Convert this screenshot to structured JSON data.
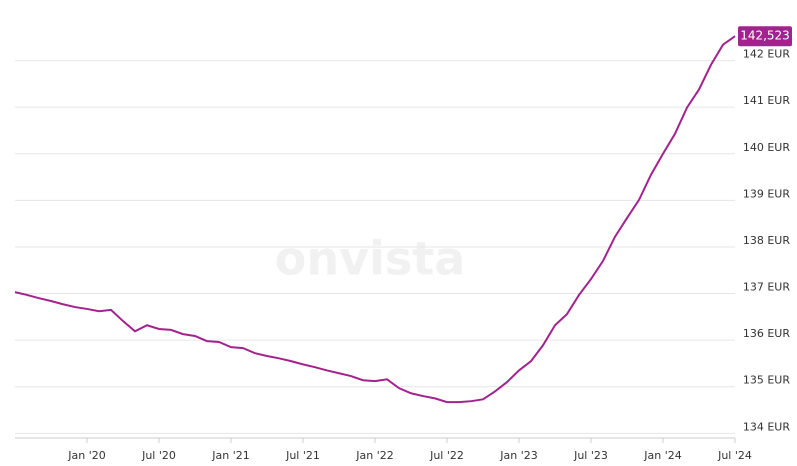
{
  "chart_data": {
    "type": "line",
    "watermark": "onvista",
    "x": [
      "2019-07",
      "2019-08",
      "2019-09",
      "2019-10",
      "2019-11",
      "2019-12",
      "2020-01",
      "2020-02",
      "2020-03",
      "2020-04",
      "2020-05",
      "2020-06",
      "2020-07",
      "2020-08",
      "2020-09",
      "2020-10",
      "2020-11",
      "2020-12",
      "2021-01",
      "2021-02",
      "2021-03",
      "2021-04",
      "2021-05",
      "2021-06",
      "2021-07",
      "2021-08",
      "2021-09",
      "2021-10",
      "2021-11",
      "2021-12",
      "2022-01",
      "2022-02",
      "2022-03",
      "2022-04",
      "2022-05",
      "2022-06",
      "2022-07",
      "2022-08",
      "2022-09",
      "2022-10",
      "2022-11",
      "2022-12",
      "2023-01",
      "2023-02",
      "2023-03",
      "2023-04",
      "2023-05",
      "2023-06",
      "2023-07",
      "2023-08",
      "2023-09",
      "2023-10",
      "2023-11",
      "2023-12",
      "2024-01",
      "2024-02",
      "2024-03",
      "2024-04",
      "2024-05",
      "2024-06",
      "2024-07"
    ],
    "series": [
      {
        "color": "#a3238e",
        "values": [
          137.03,
          136.97,
          136.9,
          136.84,
          136.77,
          136.71,
          136.67,
          136.62,
          136.65,
          136.41,
          136.19,
          136.32,
          136.24,
          136.22,
          136.13,
          136.09,
          135.98,
          135.96,
          135.85,
          135.83,
          135.72,
          135.66,
          135.61,
          135.55,
          135.48,
          135.42,
          135.35,
          135.29,
          135.23,
          135.14,
          135.12,
          135.16,
          134.97,
          134.86,
          134.8,
          134.75,
          134.67,
          134.67,
          134.69,
          134.73,
          134.9,
          135.1,
          135.35,
          135.55,
          135.89,
          136.32,
          136.56,
          136.97,
          137.31,
          137.7,
          138.22,
          138.62,
          139.01,
          139.55,
          140.0,
          140.43,
          140.99,
          141.38,
          141.91,
          142.34,
          142.523
        ],
        "value_labels": [
          null,
          null,
          null,
          null,
          null,
          null,
          null,
          null,
          null,
          null,
          null,
          null,
          null,
          null,
          null,
          null,
          null,
          null,
          null,
          null,
          null,
          null,
          null,
          null,
          null,
          null,
          null,
          null,
          null,
          null,
          null,
          null,
          null,
          null,
          null,
          null,
          null,
          null,
          null,
          null,
          null,
          null,
          null,
          null,
          null,
          null,
          null,
          null,
          null,
          null,
          null,
          null,
          null,
          null,
          null,
          null,
          null,
          null,
          null,
          null,
          "142,523"
        ]
      }
    ],
    "xlim": [
      "2019-07",
      "2024-07"
    ],
    "xticks": [
      {
        "value": "2020-01",
        "label": "Jan '20"
      },
      {
        "value": "2020-07",
        "label": "Jul '20"
      },
      {
        "value": "2021-01",
        "label": "Jan '21"
      },
      {
        "value": "2021-07",
        "label": "Jul '21"
      },
      {
        "value": "2022-01",
        "label": "Jan '22"
      },
      {
        "value": "2022-07",
        "label": "Jul '22"
      },
      {
        "value": "2023-01",
        "label": "Jan '23"
      },
      {
        "value": "2023-07",
        "label": "Jul '23"
      },
      {
        "value": "2024-01",
        "label": "Jan '24"
      },
      {
        "value": "2024-07",
        "label": "Jul '24"
      }
    ],
    "ylim": [
      133.9,
      143.3
    ],
    "yticks": [
      {
        "value": 134,
        "label": "134 EUR"
      },
      {
        "value": 135,
        "label": "135 EUR"
      },
      {
        "value": 136,
        "label": "136 EUR"
      },
      {
        "value": 137,
        "label": "137 EUR"
      },
      {
        "value": 138,
        "label": "138 EUR"
      },
      {
        "value": 139,
        "label": "139 EUR"
      },
      {
        "value": 140,
        "label": "140 EUR"
      },
      {
        "value": 141,
        "label": "141 EUR"
      },
      {
        "value": 142,
        "label": "142 EUR"
      }
    ],
    "grid": true
  }
}
